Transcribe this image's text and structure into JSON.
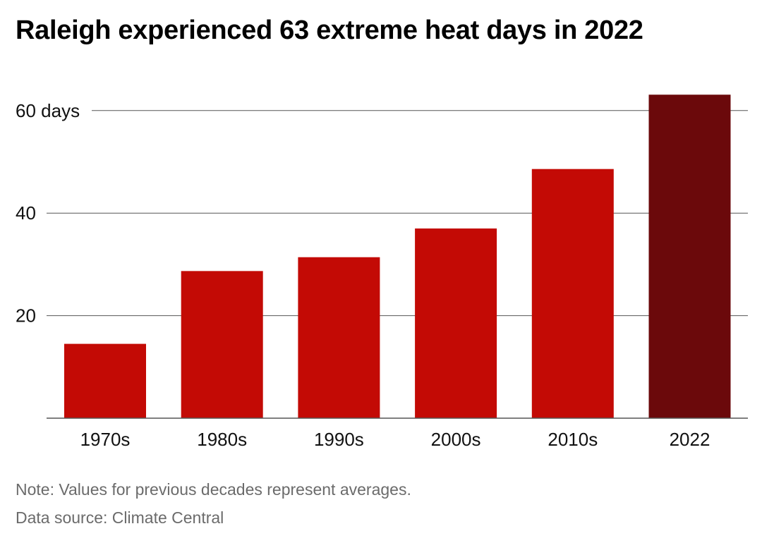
{
  "title": "Raleigh experienced 63 extreme heat days in 2022",
  "note": "Note: Values for previous decades represent averages.",
  "source": "Data source: Climate Central",
  "colors": {
    "bar": "#c30a05",
    "highlight_bar": "#6b090b",
    "grid": "#555555",
    "axis_text": "#111111"
  },
  "chart_data": {
    "type": "bar",
    "categories": [
      "1970s",
      "1980s",
      "1990s",
      "2000s",
      "2010s",
      "2022"
    ],
    "values": [
      14.5,
      28.7,
      31.4,
      37.0,
      48.6,
      63.1
    ],
    "highlight_index": 5,
    "ylim": [
      0,
      63.1
    ],
    "yticks": [
      {
        "value": 20,
        "label": "20"
      },
      {
        "value": 40,
        "label": "40"
      },
      {
        "value": 60,
        "label": "60 days"
      }
    ],
    "grid": true,
    "legend": "none"
  }
}
